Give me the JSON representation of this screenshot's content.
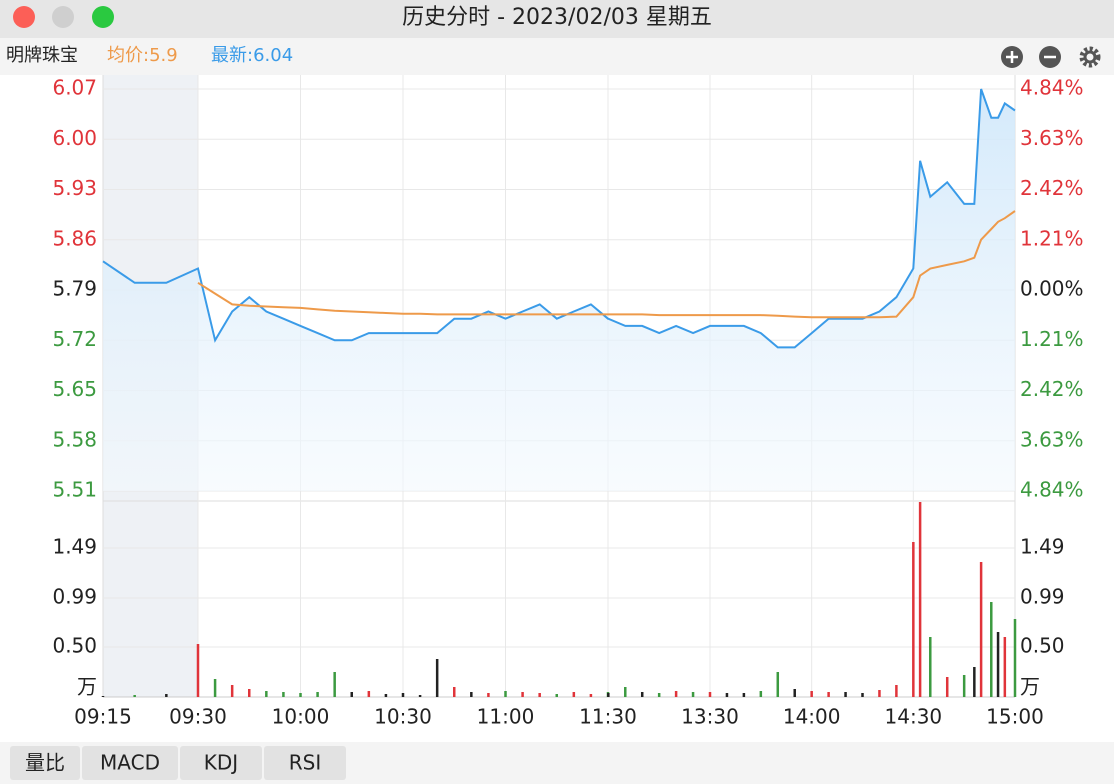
{
  "window": {
    "title": "历史分时 - 2023/02/03 星期五"
  },
  "info": {
    "stock": "明牌珠宝",
    "avg_label": "均价:",
    "avg": 5.9,
    "last_label": "最新:",
    "last": 6.04
  },
  "chart_data": [
    {
      "type": "line",
      "x": [
        "09:15",
        "09:20",
        "09:25",
        "09:30",
        "09:35",
        "09:40",
        "09:45",
        "09:50",
        "09:55",
        "10:00",
        "10:05",
        "10:10",
        "10:15",
        "10:20",
        "10:25",
        "10:30",
        "10:35",
        "10:40",
        "10:45",
        "10:50",
        "10:55",
        "11:00",
        "11:05",
        "11:10",
        "11:15",
        "11:20",
        "11:25",
        "11:30",
        "13:00",
        "13:05",
        "13:10",
        "13:15",
        "13:20",
        "13:25",
        "13:30",
        "13:35",
        "13:40",
        "13:45",
        "13:50",
        "13:55",
        "14:00",
        "14:05",
        "14:10",
        "14:15",
        "14:20",
        "14:25",
        "14:30",
        "14:32",
        "14:35",
        "14:40",
        "14:45",
        "14:48",
        "14:50",
        "14:53",
        "14:55",
        "14:57",
        "15:00"
      ],
      "series": [
        {
          "color": "#3a9be8",
          "values": [
            5.83,
            5.8,
            5.8,
            5.82,
            5.72,
            5.76,
            5.78,
            5.76,
            5.75,
            5.74,
            5.73,
            5.72,
            5.72,
            5.73,
            5.73,
            5.73,
            5.73,
            5.73,
            5.75,
            5.75,
            5.76,
            5.75,
            5.76,
            5.77,
            5.75,
            5.76,
            5.77,
            5.75,
            5.75,
            5.74,
            5.74,
            5.73,
            5.74,
            5.73,
            5.74,
            5.74,
            5.74,
            5.73,
            5.71,
            5.71,
            5.73,
            5.75,
            5.75,
            5.75,
            5.76,
            5.78,
            5.82,
            5.97,
            5.92,
            5.94,
            5.91,
            5.91,
            6.07,
            6.03,
            6.03,
            6.05,
            6.04
          ]
        },
        {
          "color": "#ee9a4a",
          "values": [
            null,
            null,
            null,
            5.8,
            5.785,
            5.77,
            5.768,
            5.767,
            5.766,
            5.765,
            5.763,
            5.761,
            5.76,
            5.759,
            5.758,
            5.757,
            5.757,
            5.756,
            5.756,
            5.756,
            5.756,
            5.756,
            5.756,
            5.756,
            5.756,
            5.756,
            5.756,
            5.756,
            5.756,
            5.756,
            5.756,
            5.755,
            5.755,
            5.755,
            5.755,
            5.755,
            5.755,
            5.755,
            5.754,
            5.753,
            5.752,
            5.752,
            5.752,
            5.752,
            5.752,
            5.753,
            5.78,
            5.81,
            5.82,
            5.825,
            5.83,
            5.835,
            5.86,
            5.875,
            5.885,
            5.89,
            5.9
          ]
        }
      ],
      "ylim": [
        5.51,
        6.07
      ],
      "yticks": [
        6.07,
        {
          "value": 6,
          "label": "6.00"
        },
        5.93,
        5.86,
        5.79,
        5.72,
        5.65,
        5.58,
        5.51
      ],
      "y2lim": [
        -4.84,
        4.84
      ],
      "y2ticks": [
        {
          "value": 4.84,
          "label": "4.84%"
        },
        {
          "value": 3.63,
          "label": "3.63%"
        },
        {
          "value": 2.42,
          "label": "2.42%"
        },
        {
          "value": 1.21,
          "label": "1.21%"
        },
        {
          "value": 0,
          "label": "0.00%"
        },
        {
          "value": -1.21,
          "label": "1.21%"
        },
        {
          "value": -2.42,
          "label": "2.42%"
        },
        {
          "value": -3.63,
          "label": "3.63%"
        },
        {
          "value": -4.84,
          "label": "4.84%"
        }
      ],
      "xticks": [
        "09:15",
        "09:30",
        "10:00",
        "10:30",
        "11:00",
        "11:30",
        "13:30",
        "14:00",
        "14:30",
        "15:00"
      ],
      "grid": true
    },
    {
      "type": "bar",
      "unit": "万",
      "values": [
        0.01,
        0.02,
        0.03,
        0.53,
        0.18,
        0.12,
        0.08,
        0.06,
        0.05,
        0.04,
        0.05,
        0.25,
        0.05,
        0.06,
        0.03,
        0.04,
        0.02,
        0.38,
        0.1,
        0.05,
        0.04,
        0.06,
        0.05,
        0.04,
        0.03,
        0.05,
        0.03,
        0.05,
        0.04,
        0.1,
        0.05,
        0.04,
        0.06,
        0.05,
        0.05,
        0.04,
        0.04,
        0.06,
        0.25,
        0.08,
        0.06,
        0.05,
        0.05,
        0.04,
        0.07,
        0.12,
        1.55,
        1.95,
        0.6,
        0.2,
        0.22,
        0.3,
        1.35,
        0.95,
        0.65,
        0.6,
        0.78
      ],
      "ylim": [
        0,
        1.96
      ],
      "yticks": [
        {
          "value": 0.5,
          "label": "0.50"
        },
        0.99,
        1.49
      ],
      "grid": true
    }
  ],
  "tabs": [
    "量比",
    "MACD",
    "KDJ",
    "RSI"
  ]
}
